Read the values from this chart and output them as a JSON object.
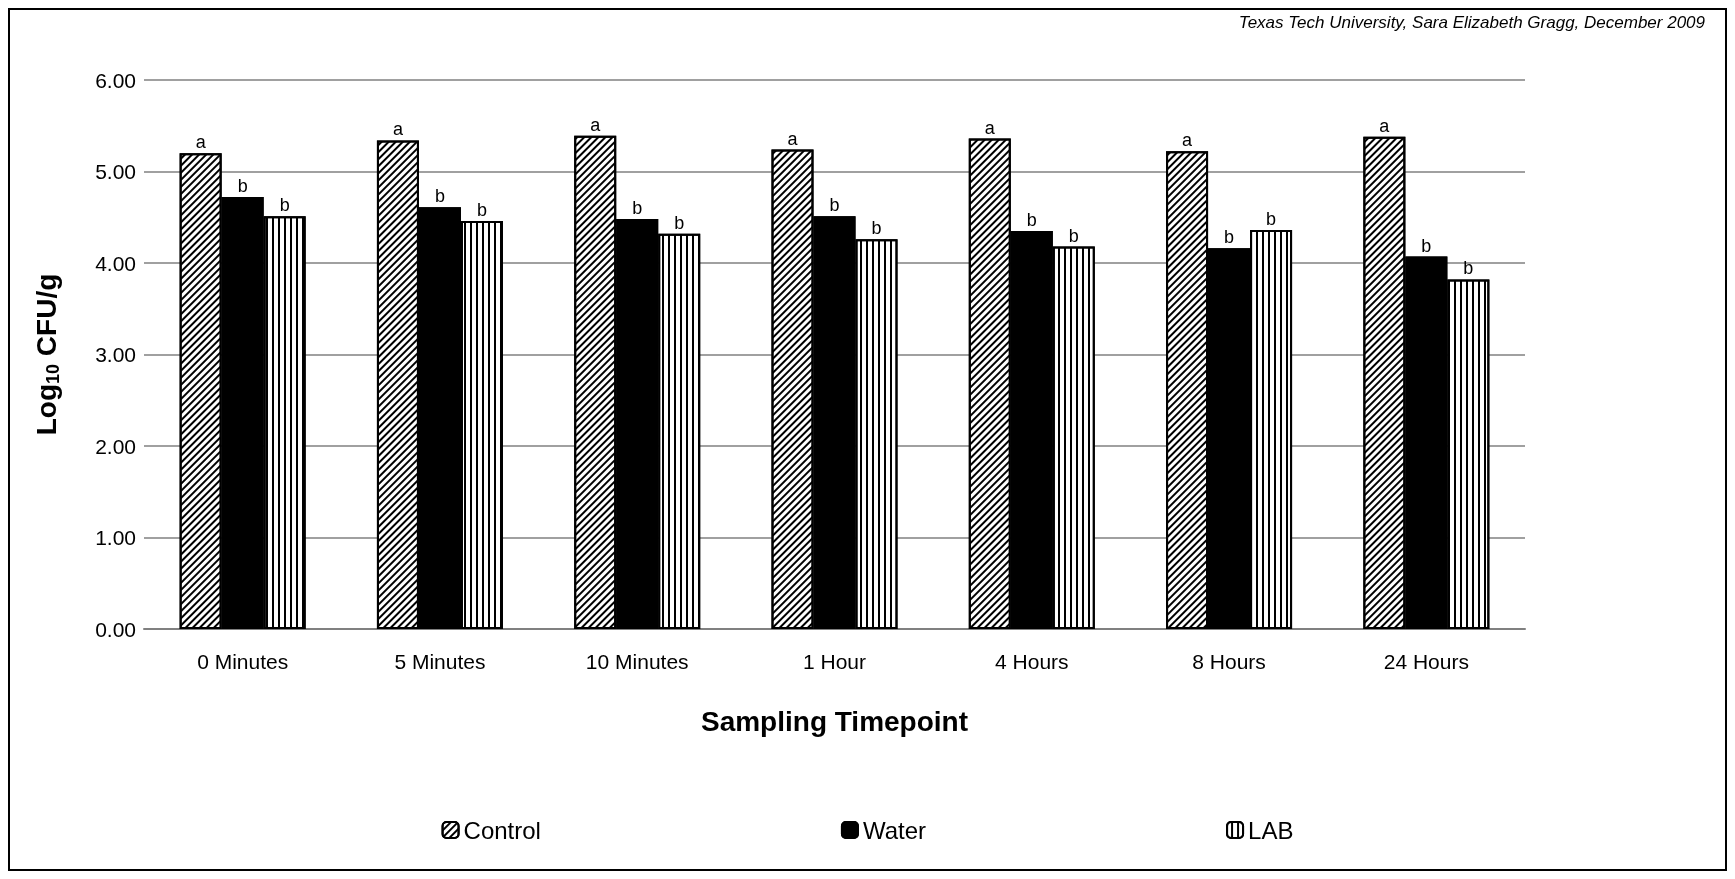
{
  "chart_data": {
    "type": "bar",
    "xlabel": "Sampling Timepoint",
    "ylabel": "Log$_{10}$ CFU/g",
    "annotations": [
      "Texas Tech University, Sara Elizabeth Gragg, December 2009"
    ],
    "categories": [
      "0 Minutes",
      "5 Minutes",
      "10 Minutes",
      "1 Hour",
      "4 Hours",
      "8 Hours",
      "24 Hours"
    ],
    "series": [
      {
        "name": "Control",
        "color": "#ffffff",
        "values": [
          5.2,
          5.34,
          5.39,
          5.24,
          5.36,
          5.22,
          5.38
        ],
        "value_labels": [
          "a",
          "a",
          "a",
          "a",
          "a",
          "a",
          "a"
        ]
      },
      {
        "name": "Water",
        "color": "#000000",
        "values": [
          4.72,
          4.61,
          4.48,
          4.51,
          4.35,
          4.16,
          4.07
        ],
        "value_labels": [
          "b",
          "b",
          "b",
          "b",
          "b",
          "b",
          "b"
        ]
      },
      {
        "name": "LAB",
        "color": "#ffffff",
        "values": [
          4.51,
          4.46,
          4.32,
          4.26,
          4.18,
          4.36,
          3.82
        ],
        "value_labels": [
          "b",
          "b",
          "b",
          "b",
          "b",
          "b",
          "b"
        ]
      }
    ],
    "ylim": [
      0,
      6
    ],
    "yticks": [
      {
        "value": 0,
        "label": "0.00"
      },
      {
        "value": 1,
        "label": "1.00"
      },
      {
        "value": 2,
        "label": "2.00"
      },
      {
        "value": 3,
        "label": "3.00"
      },
      {
        "value": 4,
        "label": "4.00"
      },
      {
        "value": 5,
        "label": "5.00"
      },
      {
        "value": 6,
        "label": "6.00"
      }
    ],
    "grid": "y",
    "legend": "bottom"
  }
}
